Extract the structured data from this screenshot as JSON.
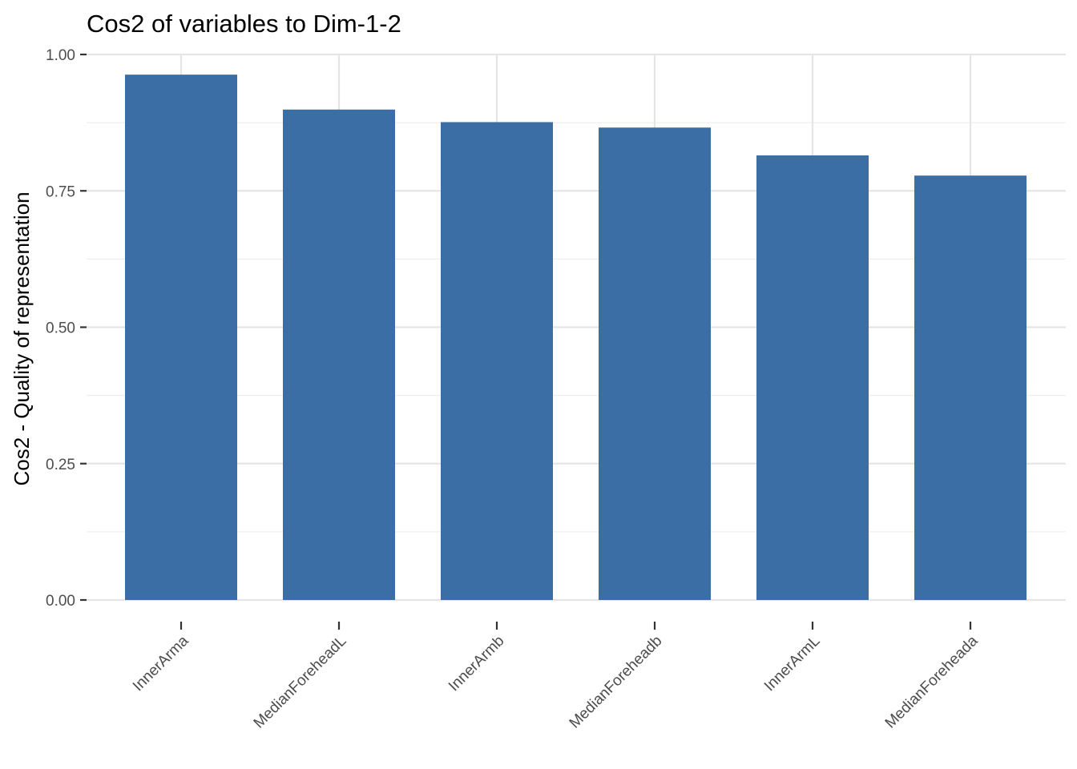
{
  "chart_data": {
    "type": "bar",
    "title": "Cos2 of variables to Dim-1-2",
    "xlabel": "",
    "ylabel": "Cos2 - Quality of representation",
    "categories": [
      "InnerArma",
      "MedianForeheadL",
      "InnerArmb",
      "MedianForeheadb",
      "InnerArmL",
      "MedianForeheada"
    ],
    "values": [
      0.963,
      0.899,
      0.876,
      0.866,
      0.815,
      0.778
    ],
    "ylim": [
      0,
      1.0
    ],
    "yticks": [
      0.0,
      0.25,
      0.5,
      0.75,
      1.0
    ],
    "ytick_labels": [
      "0.00",
      "0.25",
      "0.50",
      "0.75",
      "1.00"
    ],
    "grid": true,
    "legend": "none",
    "bar_color": "#3A6EA5"
  }
}
